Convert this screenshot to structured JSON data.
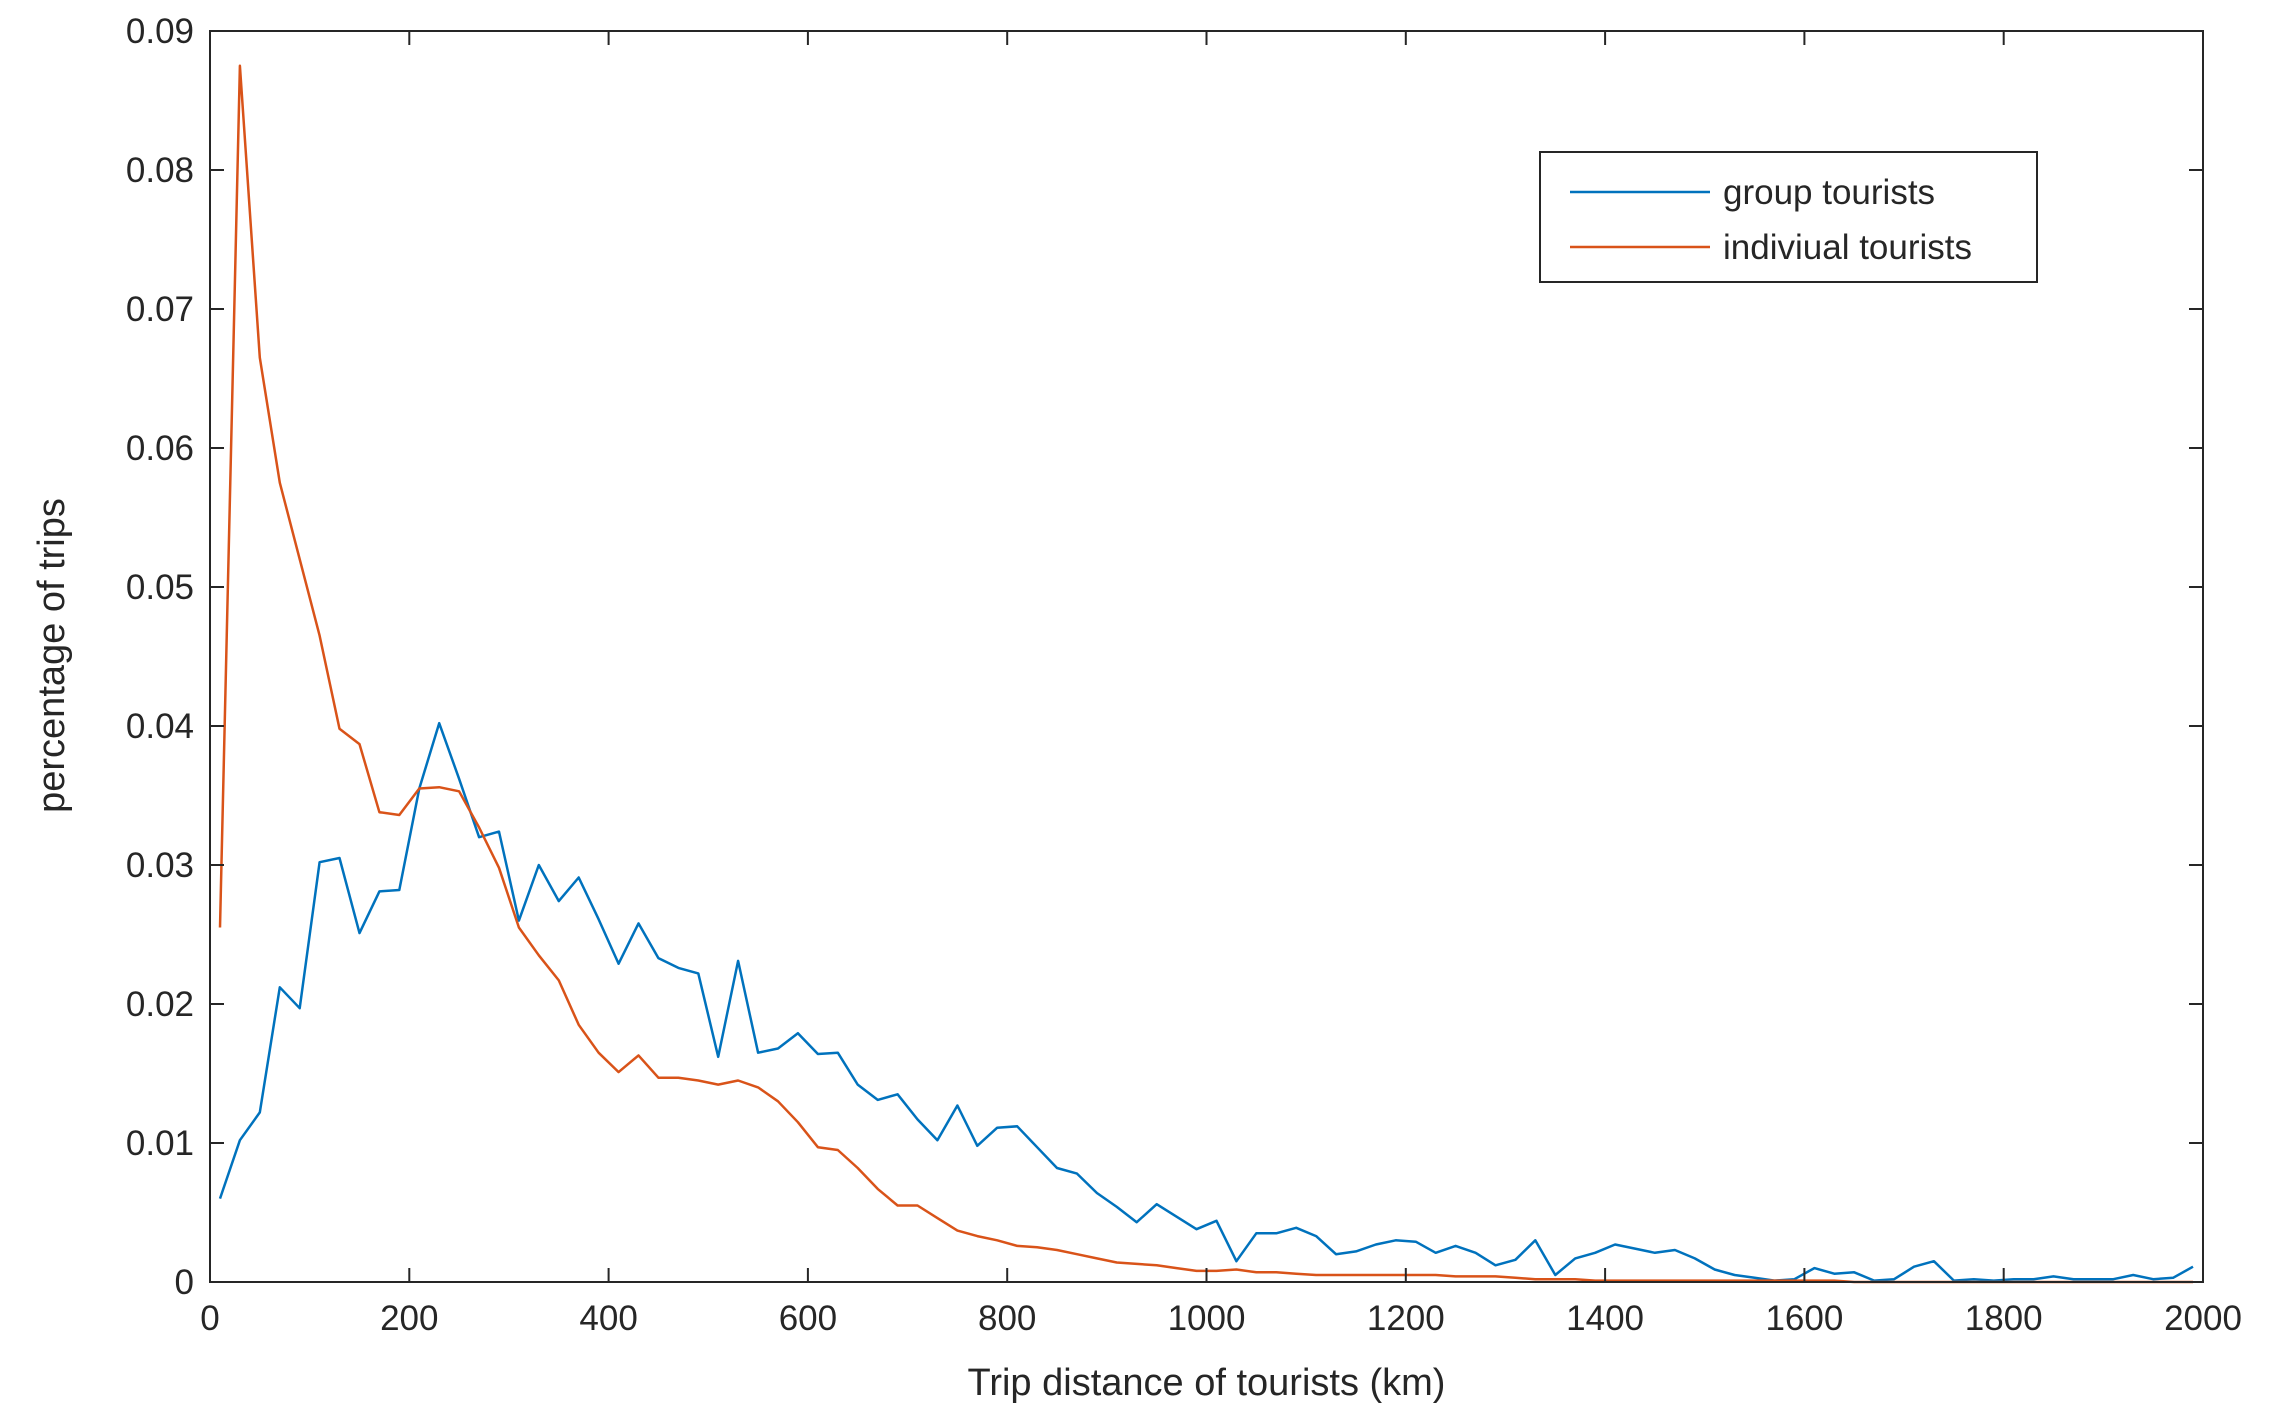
{
  "chart_data": {
    "type": "line",
    "title": "",
    "xlabel": "Trip distance of tourists (km)",
    "ylabel": "percentage of trips",
    "xlim": [
      0,
      2000
    ],
    "ylim": [
      0,
      0.09
    ],
    "xticks": [
      0,
      200,
      400,
      600,
      800,
      1000,
      1200,
      1400,
      1600,
      1800,
      2000
    ],
    "xtick_labels": [
      "0",
      "200",
      "400",
      "600",
      "800",
      "1000",
      "1200",
      "1400",
      "1600",
      "1800",
      "2000"
    ],
    "yticks": [
      0,
      0.01,
      0.02,
      0.03,
      0.04,
      0.05,
      0.06,
      0.07,
      0.08,
      0.09
    ],
    "ytick_labels": [
      "0",
      "0.01",
      "0.02",
      "0.03",
      "0.04",
      "0.05",
      "0.06",
      "0.07",
      "0.08",
      "0.09"
    ],
    "grid": false,
    "legend_position": "top-right",
    "series": [
      {
        "name": "group tourists",
        "color": "#0072BD",
        "x": [
          10,
          30,
          50,
          70,
          90,
          110,
          130,
          150,
          170,
          190,
          210,
          230,
          250,
          270,
          290,
          310,
          330,
          350,
          370,
          390,
          410,
          430,
          450,
          470,
          490,
          510,
          530,
          550,
          570,
          590,
          610,
          630,
          650,
          670,
          690,
          710,
          730,
          750,
          770,
          790,
          810,
          830,
          850,
          870,
          890,
          910,
          930,
          950,
          970,
          990,
          1010,
          1030,
          1050,
          1070,
          1090,
          1110,
          1130,
          1150,
          1170,
          1190,
          1210,
          1230,
          1250,
          1270,
          1290,
          1310,
          1330,
          1350,
          1370,
          1390,
          1410,
          1430,
          1450,
          1470,
          1490,
          1510,
          1530,
          1550,
          1570,
          1590,
          1610,
          1630,
          1650,
          1670,
          1690,
          1710,
          1730,
          1750,
          1770,
          1790,
          1810,
          1830,
          1850,
          1870,
          1890,
          1910,
          1930,
          1950,
          1970,
          1990
        ],
        "y": [
          0.006,
          0.0102,
          0.0122,
          0.0212,
          0.0197,
          0.0302,
          0.0305,
          0.0251,
          0.0281,
          0.0282,
          0.0355,
          0.0402,
          0.0362,
          0.032,
          0.0324,
          0.026,
          0.03,
          0.0274,
          0.0291,
          0.0261,
          0.0229,
          0.0258,
          0.0233,
          0.0226,
          0.0222,
          0.0162,
          0.0231,
          0.0165,
          0.0168,
          0.0179,
          0.0164,
          0.0165,
          0.0142,
          0.0131,
          0.0135,
          0.0117,
          0.0102,
          0.0127,
          0.0098,
          0.0111,
          0.0112,
          0.0097,
          0.0082,
          0.0078,
          0.0064,
          0.0054,
          0.0043,
          0.0056,
          0.0047,
          0.0038,
          0.0044,
          0.0015,
          0.0035,
          0.0035,
          0.0039,
          0.0033,
          0.002,
          0.0022,
          0.0027,
          0.003,
          0.0029,
          0.0021,
          0.0026,
          0.0021,
          0.0012,
          0.0016,
          0.003,
          0.0005,
          0.0017,
          0.0021,
          0.0027,
          0.0024,
          0.0021,
          0.0023,
          0.0017,
          0.0009,
          0.0005,
          0.0003,
          0.0001,
          0.0002,
          0.001,
          0.0006,
          0.0007,
          0.0001,
          0.0002,
          0.0011,
          0.0015,
          0.0001,
          0.0002,
          0.0001,
          0.0002,
          0.0002,
          0.0004,
          0.0002,
          0.0002,
          0.0002,
          0.0005,
          0.0002,
          0.0003,
          0.0011
        ]
      },
      {
        "name": "indiviual tourists",
        "color": "#D95319",
        "x": [
          10,
          30,
          50,
          70,
          90,
          110,
          130,
          150,
          170,
          190,
          210,
          230,
          250,
          270,
          290,
          310,
          330,
          350,
          370,
          390,
          410,
          430,
          450,
          470,
          490,
          510,
          530,
          550,
          570,
          590,
          610,
          630,
          650,
          670,
          690,
          710,
          730,
          750,
          770,
          790,
          810,
          830,
          850,
          870,
          890,
          910,
          930,
          950,
          970,
          990,
          1010,
          1030,
          1050,
          1070,
          1090,
          1110,
          1130,
          1150,
          1170,
          1190,
          1210,
          1230,
          1250,
          1270,
          1290,
          1310,
          1330,
          1350,
          1370,
          1390,
          1410,
          1430,
          1450,
          1470,
          1490,
          1510,
          1530,
          1550,
          1570,
          1590,
          1610,
          1630,
          1650,
          1670,
          1690,
          1710,
          1730,
          1750,
          1770,
          1790,
          1810,
          1830,
          1850,
          1870,
          1890,
          1910,
          1930,
          1950,
          1970,
          1990
        ],
        "y": [
          0.0255,
          0.0875,
          0.0665,
          0.0575,
          0.052,
          0.0465,
          0.0398,
          0.0387,
          0.0338,
          0.0336,
          0.0355,
          0.0356,
          0.0353,
          0.0327,
          0.0298,
          0.0255,
          0.0235,
          0.0217,
          0.0185,
          0.0165,
          0.0151,
          0.0163,
          0.0147,
          0.0147,
          0.0145,
          0.0142,
          0.0145,
          0.014,
          0.013,
          0.0115,
          0.0097,
          0.0095,
          0.0082,
          0.0067,
          0.0055,
          0.0055,
          0.0046,
          0.0037,
          0.0033,
          0.003,
          0.0026,
          0.0025,
          0.0023,
          0.002,
          0.0017,
          0.0014,
          0.0013,
          0.0012,
          0.001,
          0.0008,
          0.0008,
          0.0009,
          0.0007,
          0.0007,
          0.0006,
          0.0005,
          0.0005,
          0.0005,
          0.0005,
          0.0005,
          0.0005,
          0.0005,
          0.0004,
          0.0004,
          0.0004,
          0.0003,
          0.0002,
          0.0002,
          0.0002,
          0.0001,
          0.0001,
          0.0001,
          0.0001,
          0.0001,
          0.0001,
          0.0001,
          0.0001,
          0.0001,
          0.0001,
          0.0001,
          0.0001,
          0.0001,
          0,
          0,
          0,
          0,
          0,
          0,
          0,
          0,
          0,
          0,
          0,
          0,
          0,
          0,
          0,
          0,
          0,
          0
        ]
      }
    ]
  }
}
